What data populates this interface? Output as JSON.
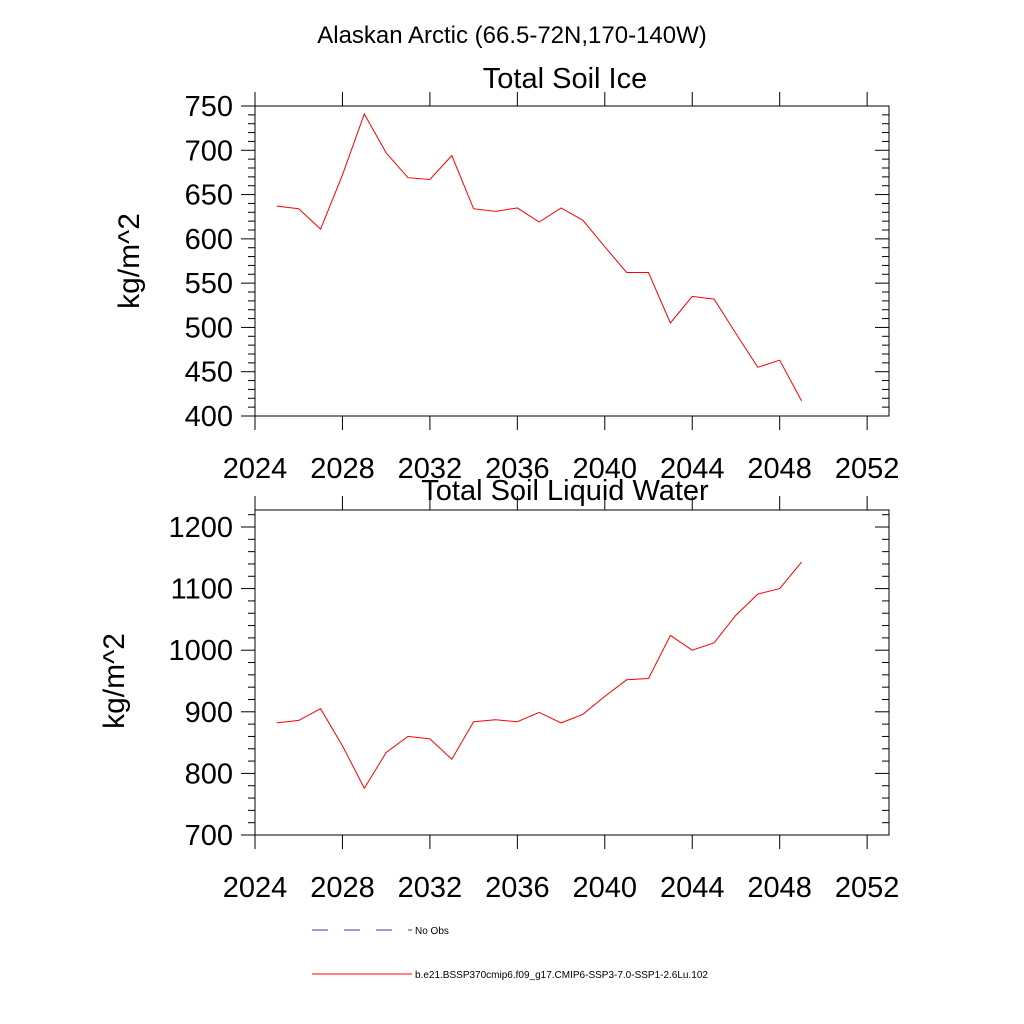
{
  "figure": {
    "title": "Alaskan Arctic (66.5-72N,170-140W)"
  },
  "chart_data": [
    {
      "type": "line",
      "title": "Total Soil Ice",
      "xlabel": "",
      "ylabel": "kg/m^2",
      "xlim": [
        2024,
        2053
      ],
      "ylim": [
        400,
        750
      ],
      "xticks": [
        2024,
        2028,
        2032,
        2036,
        2040,
        2044,
        2048,
        2052
      ],
      "yticks": [
        400,
        450,
        500,
        550,
        600,
        650,
        700,
        750
      ],
      "grid": false,
      "series": [
        {
          "color": "#ff0000",
          "x": [
            2025,
            2026,
            2027,
            2028,
            2029,
            2030,
            2031,
            2032,
            2033,
            2034,
            2035,
            2036,
            2037,
            2038,
            2039,
            2040,
            2041,
            2042,
            2043,
            2044,
            2045,
            2046,
            2047,
            2048,
            2049
          ],
          "values": [
            637,
            634,
            611,
            672,
            741,
            697,
            669,
            667,
            694,
            634,
            631,
            635,
            619,
            635,
            621,
            591,
            562,
            562,
            505,
            535,
            532,
            493,
            455,
            463,
            417
          ]
        }
      ]
    },
    {
      "type": "line",
      "title": "Total Soil Liquid Water",
      "xlabel": "",
      "ylabel": "kg/m^2",
      "xlim": [
        2024,
        2053
      ],
      "ylim": [
        700,
        1225
      ],
      "xticks": [
        2024,
        2028,
        2032,
        2036,
        2040,
        2044,
        2048,
        2052
      ],
      "yticks": [
        700,
        800,
        900,
        1000,
        1100,
        1200
      ],
      "grid": false,
      "series": [
        {
          "color": "#ff0000",
          "x": [
            2025,
            2026,
            2027,
            2028,
            2029,
            2030,
            2031,
            2032,
            2033,
            2034,
            2035,
            2036,
            2037,
            2038,
            2039,
            2040,
            2041,
            2042,
            2043,
            2044,
            2045,
            2046,
            2047,
            2048,
            2049
          ],
          "values": [
            882,
            886,
            905,
            845,
            776,
            834,
            860,
            856,
            823,
            884,
            887,
            884,
            899,
            882,
            896,
            925,
            952,
            954,
            1024,
            1000,
            1012,
            1057,
            1091,
            1100,
            1143
          ]
        }
      ]
    }
  ],
  "legend": {
    "placement": "bottom-center",
    "entries": [
      {
        "label": "No Obs",
        "color": "#3c3c8c",
        "style": "dashed"
      },
      {
        "label": "b.e21.BSSP370cmip6.f09_g17.CMIP6-SSP3-7.0-SSP1-2.6Lu.102",
        "color": "#ff0000",
        "style": "solid"
      }
    ]
  }
}
